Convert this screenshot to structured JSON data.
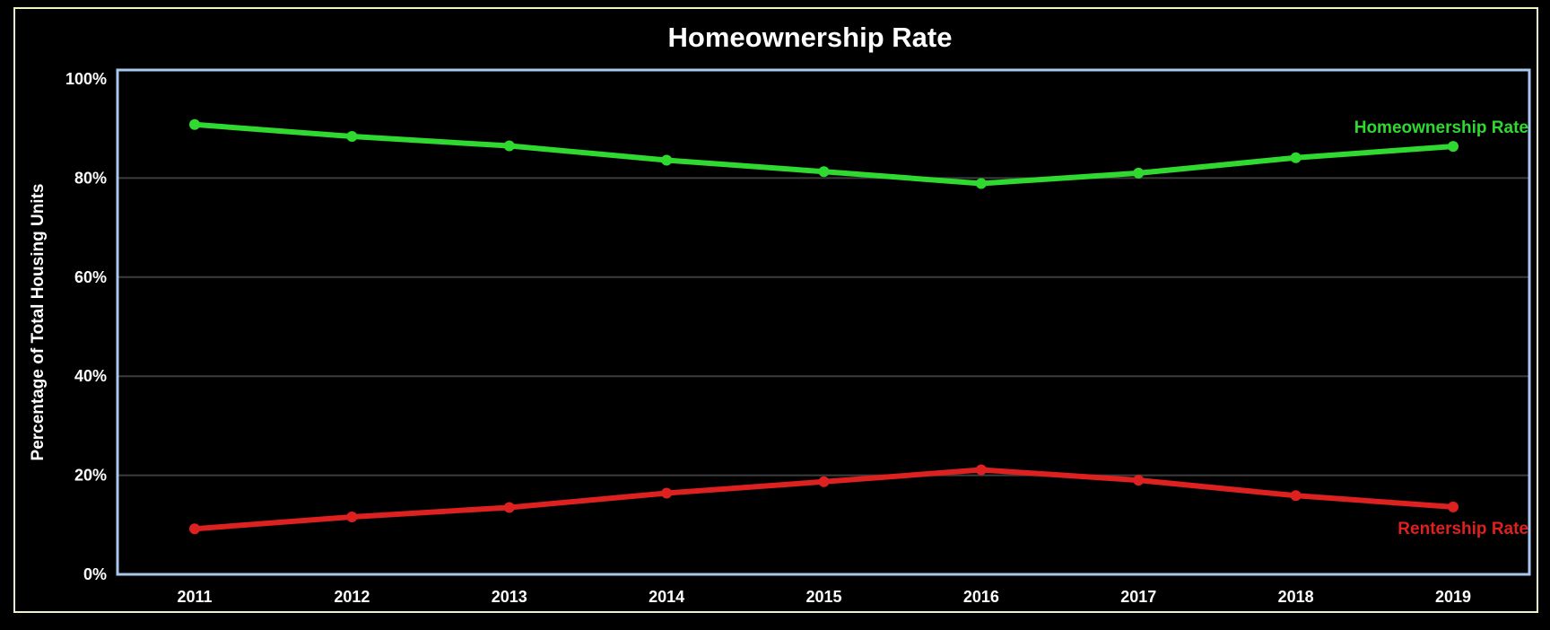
{
  "chart_data": {
    "type": "line",
    "title": "Homeownership Rate",
    "xlabel": "",
    "ylabel": "Percentage of Total Housing Units",
    "x": [
      "2011",
      "2012",
      "2013",
      "2014",
      "2015",
      "2016",
      "2017",
      "2018",
      "2019"
    ],
    "ylim": [
      0,
      100
    ],
    "yticks": [
      "0%",
      "20%",
      "40%",
      "60%",
      "80%",
      "100%"
    ],
    "ytick_values": [
      0,
      20,
      40,
      60,
      80,
      100
    ],
    "grid": true,
    "legend": "none",
    "series": [
      {
        "name": "Homeownership Rate",
        "color": "#2fd92f",
        "values": [
          90.8,
          88.4,
          86.5,
          83.6,
          81.3,
          78.9,
          81.0,
          84.1,
          86.4
        ]
      },
      {
        "name": "Rentership Rate",
        "color": "#dd2020",
        "values": [
          9.2,
          11.6,
          13.5,
          16.4,
          18.7,
          21.1,
          19.0,
          15.9,
          13.6
        ]
      }
    ],
    "colors": {
      "background": "#000000",
      "outer_border": "#f2f2c8",
      "plot_border": "#a9c8f0",
      "gridline": "#3c3c3c",
      "text": "#ffffff"
    }
  }
}
